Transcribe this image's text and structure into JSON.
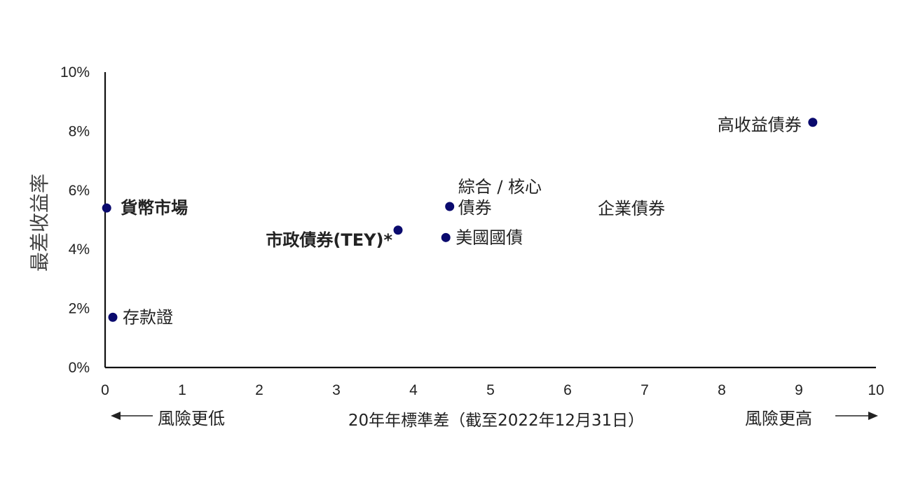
{
  "chart_data": {
    "type": "scatter",
    "xlabel": "20年年標準差（截至2022年12月31日）",
    "ylabel": "最差收益率",
    "xlim": [
      0,
      10
    ],
    "ylim": [
      0,
      10
    ],
    "x_ticks": [
      "0",
      "1",
      "2",
      "3",
      "4",
      "5",
      "6",
      "7",
      "8",
      "9",
      "10"
    ],
    "y_ticks": [
      "0%",
      "2%",
      "4%",
      "6%",
      "8%",
      "10%"
    ],
    "marker_color": "#0a0a6e",
    "points": [
      {
        "label": "貨幣市場",
        "x": 0.02,
        "y": 5.4,
        "bold": true
      },
      {
        "label": "存款證",
        "x": 0.1,
        "y": 1.7,
        "bold": false
      },
      {
        "label": "市政債券(TEY)*",
        "x": 3.8,
        "y": 4.65,
        "bold": true
      },
      {
        "label": "綜合 / 核心債券",
        "label_lines": [
          "綜合 / 核心",
          "債券"
        ],
        "x": 4.47,
        "y": 5.45,
        "bold": false
      },
      {
        "label": "美國國債",
        "x": 4.42,
        "y": 4.4,
        "bold": false
      },
      {
        "label": "企業債券",
        "x": null,
        "y": null,
        "bold": false
      },
      {
        "label": "高收益債券",
        "x": 9.18,
        "y": 8.3,
        "bold": false
      }
    ]
  },
  "risk_labels": {
    "lower": "風險更低",
    "higher": "風險更高"
  }
}
